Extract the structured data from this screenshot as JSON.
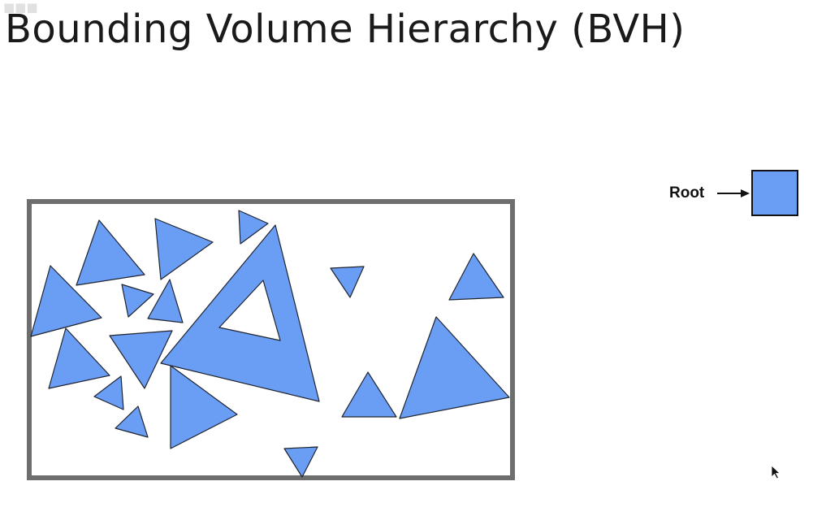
{
  "slide": {
    "title": "Bounding Volume Hierarchy (BVH)"
  },
  "tree": {
    "root_label": "Root"
  },
  "colors": {
    "triangle_fill": "#6a9ef5",
    "triangle_stroke": "#1f2430",
    "box_stroke": "#6e6e6e",
    "node_fill": "#6a9ef5",
    "node_stroke": "#111111"
  },
  "icons": {
    "cursor": "pointer-cursor-icon"
  }
}
